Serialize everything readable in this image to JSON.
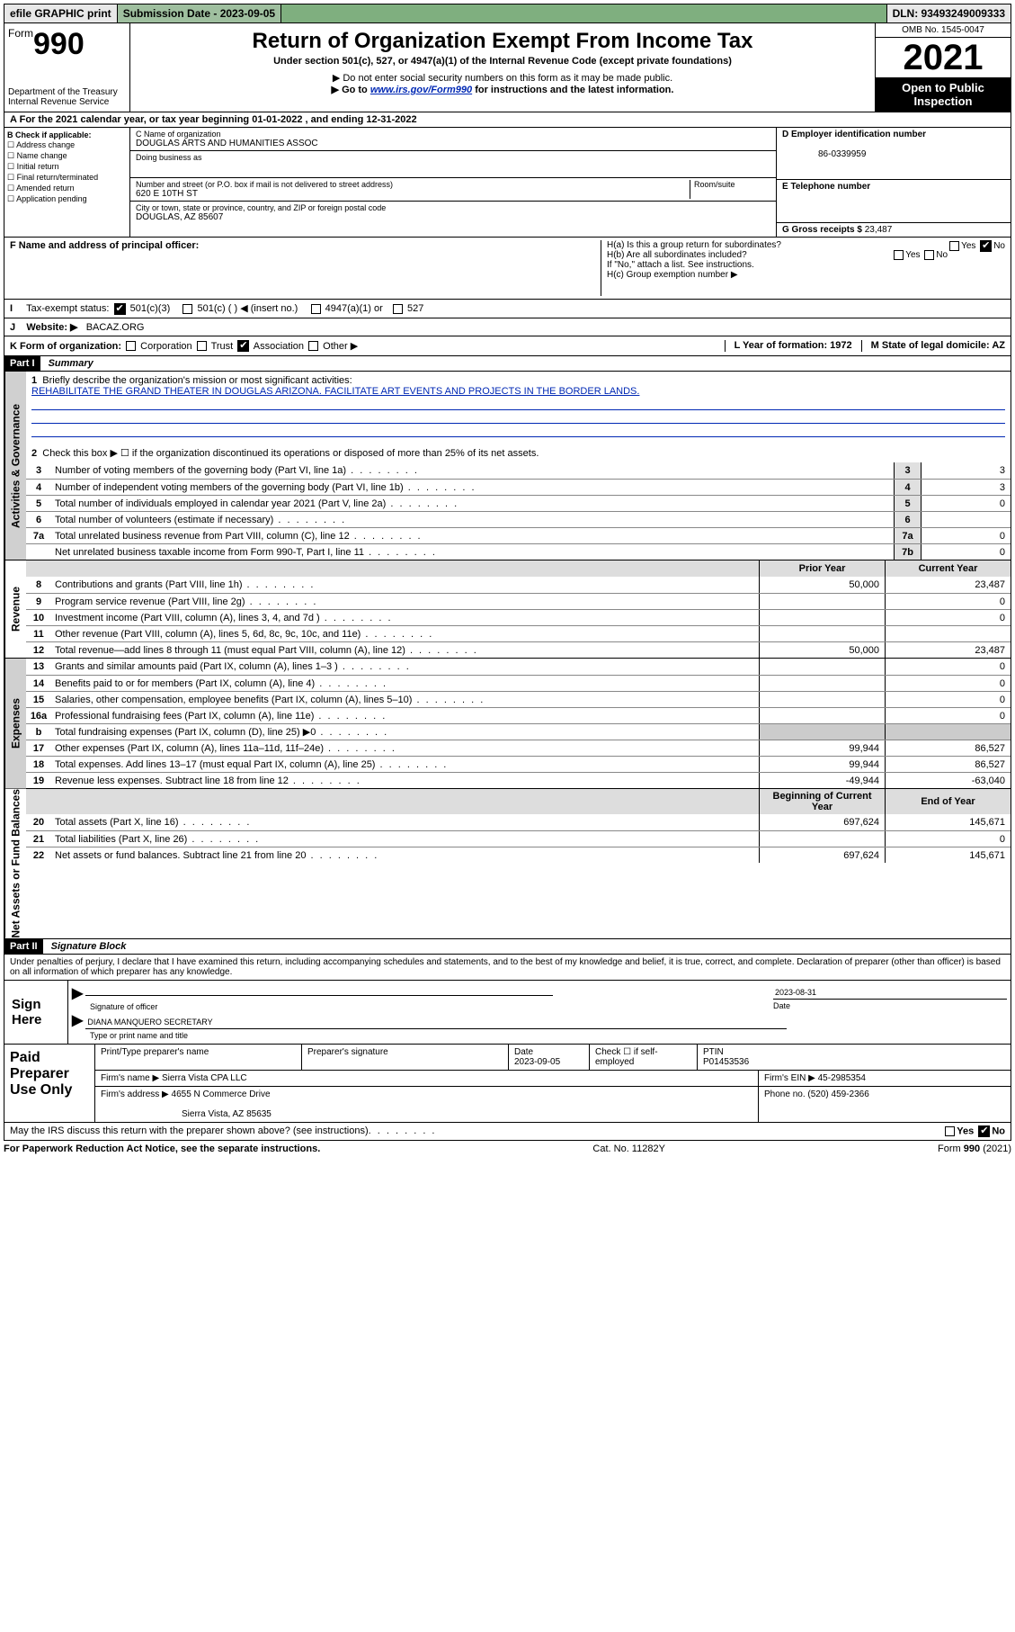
{
  "topbar": {
    "efile": "efile GRAPHIC print",
    "submission_label": "Submission Date - 2023-09-05",
    "dln": "DLN: 93493249009333"
  },
  "header": {
    "form_word": "Form",
    "form_number": "990",
    "dept": "Department of the Treasury",
    "irs": "Internal Revenue Service",
    "title": "Return of Organization Exempt From Income Tax",
    "subtitle": "Under section 501(c), 527, or 4947(a)(1) of the Internal Revenue Code (except private foundations)",
    "note1": "▶ Do not enter social security numbers on this form as it may be made public.",
    "note2_pre": "▶ Go to ",
    "note2_link": "www.irs.gov/Form990",
    "note2_post": " for instructions and the latest information.",
    "omb": "OMB No. 1545-0047",
    "year": "2021",
    "open": "Open to Public Inspection"
  },
  "A": {
    "text": "For the 2021 calendar year, or tax year beginning 01-01-2022   , and ending 12-31-2022"
  },
  "B": {
    "label": "B Check if applicable:",
    "opts": [
      "Address change",
      "Name change",
      "Initial return",
      "Final return/terminated",
      "Amended return",
      "Application pending"
    ]
  },
  "C": {
    "name_label": "C Name of organization",
    "name": "DOUGLAS ARTS AND HUMANITIES ASSOC",
    "dba_label": "Doing business as",
    "dba": "",
    "street_label": "Number and street (or P.O. box if mail is not delivered to street address)",
    "room_label": "Room/suite",
    "street": "620 E 10TH ST",
    "city_label": "City or town, state or province, country, and ZIP or foreign postal code",
    "city": "DOUGLAS, AZ  85607"
  },
  "D": {
    "label": "D Employer identification number",
    "val": "86-0339959"
  },
  "E": {
    "label": "E Telephone number",
    "val": ""
  },
  "G": {
    "label": "G Gross receipts $",
    "val": "23,487"
  },
  "F": {
    "label": "F  Name and address of principal officer:",
    "val": ""
  },
  "H": {
    "a": "H(a)  Is this a group return for subordinates?",
    "b": "H(b)  Are all subordinates included?",
    "bnote": "If \"No,\" attach a list. See instructions.",
    "c": "H(c)  Group exemption number ▶",
    "yes": "Yes",
    "no": "No"
  },
  "I": {
    "label": "Tax-exempt status:",
    "o1": "501(c)(3)",
    "o2": "501(c) (  ) ◀ (insert no.)",
    "o3": "4947(a)(1) or",
    "o4": "527"
  },
  "J": {
    "label": "Website: ▶",
    "val": "BACAZ.ORG"
  },
  "K": {
    "label": "K Form of organization:",
    "o1": "Corporation",
    "o2": "Trust",
    "o3": "Association",
    "o4": "Other ▶"
  },
  "L": {
    "label": "L Year of formation: 1972"
  },
  "M": {
    "label": "M State of legal domicile: AZ"
  },
  "partI": {
    "header": "Part I",
    "title": "Summary",
    "line1": "Briefly describe the organization's mission or most significant activities:",
    "mission": "REHABILITATE THE GRAND THEATER IN DOUGLAS ARIZONA. FACILITATE ART EVENTS AND PROJECTS IN THE BORDER LANDS.",
    "line2": "Check this box ▶ ☐  if the organization discontinued its operations or disposed of more than 25% of its net assets.",
    "gov_lines": [
      {
        "n": "3",
        "t": "Number of voting members of the governing body (Part VI, line 1a)",
        "box": "3",
        "v": "3"
      },
      {
        "n": "4",
        "t": "Number of independent voting members of the governing body (Part VI, line 1b)",
        "box": "4",
        "v": "3"
      },
      {
        "n": "5",
        "t": "Total number of individuals employed in calendar year 2021 (Part V, line 2a)",
        "box": "5",
        "v": "0"
      },
      {
        "n": "6",
        "t": "Total number of volunteers (estimate if necessary)",
        "box": "6",
        "v": ""
      },
      {
        "n": "7a",
        "t": "Total unrelated business revenue from Part VIII, column (C), line 12",
        "box": "7a",
        "v": "0"
      },
      {
        "n": "",
        "t": "Net unrelated business taxable income from Form 990-T, Part I, line 11",
        "box": "7b",
        "v": "0"
      }
    ],
    "col_prior": "Prior Year",
    "col_current": "Current Year",
    "revenue": [
      {
        "n": "8",
        "t": "Contributions and grants (Part VIII, line 1h)",
        "p": "50,000",
        "c": "23,487"
      },
      {
        "n": "9",
        "t": "Program service revenue (Part VIII, line 2g)",
        "p": "",
        "c": "0"
      },
      {
        "n": "10",
        "t": "Investment income (Part VIII, column (A), lines 3, 4, and 7d )",
        "p": "",
        "c": "0"
      },
      {
        "n": "11",
        "t": "Other revenue (Part VIII, column (A), lines 5, 6d, 8c, 9c, 10c, and 11e)",
        "p": "",
        "c": ""
      },
      {
        "n": "12",
        "t": "Total revenue—add lines 8 through 11 (must equal Part VIII, column (A), line 12)",
        "p": "50,000",
        "c": "23,487"
      }
    ],
    "expenses": [
      {
        "n": "13",
        "t": "Grants and similar amounts paid (Part IX, column (A), lines 1–3 )",
        "p": "",
        "c": "0"
      },
      {
        "n": "14",
        "t": "Benefits paid to or for members (Part IX, column (A), line 4)",
        "p": "",
        "c": "0"
      },
      {
        "n": "15",
        "t": "Salaries, other compensation, employee benefits (Part IX, column (A), lines 5–10)",
        "p": "",
        "c": "0"
      },
      {
        "n": "16a",
        "t": "Professional fundraising fees (Part IX, column (A), line 11e)",
        "p": "",
        "c": "0"
      },
      {
        "n": "b",
        "t": "Total fundraising expenses (Part IX, column (D), line 25) ▶0",
        "p": "SHADE",
        "c": "SHADE"
      },
      {
        "n": "17",
        "t": "Other expenses (Part IX, column (A), lines 11a–11d, 11f–24e)",
        "p": "99,944",
        "c": "86,527"
      },
      {
        "n": "18",
        "t": "Total expenses. Add lines 13–17 (must equal Part IX, column (A), line 25)",
        "p": "99,944",
        "c": "86,527"
      },
      {
        "n": "19",
        "t": "Revenue less expenses. Subtract line 18 from line 12",
        "p": "-49,944",
        "c": "-63,040"
      }
    ],
    "col_begin": "Beginning of Current Year",
    "col_end": "End of Year",
    "netassets": [
      {
        "n": "20",
        "t": "Total assets (Part X, line 16)",
        "p": "697,624",
        "c": "145,671"
      },
      {
        "n": "21",
        "t": "Total liabilities (Part X, line 26)",
        "p": "",
        "c": "0"
      },
      {
        "n": "22",
        "t": "Net assets or fund balances. Subtract line 21 from line 20",
        "p": "697,624",
        "c": "145,671"
      }
    ],
    "vtab_gov": "Activities & Governance",
    "vtab_rev": "Revenue",
    "vtab_exp": "Expenses",
    "vtab_net": "Net Assets or Fund Balances"
  },
  "partII": {
    "header": "Part II",
    "title": "Signature Block",
    "penalty": "Under penalties of perjury, I declare that I have examined this return, including accompanying schedules and statements, and to the best of my knowledge and belief, it is true, correct, and complete. Declaration of preparer (other than officer) is based on all information of which preparer has any knowledge.",
    "sign_here": "Sign Here",
    "sig_officer": "Signature of officer",
    "date": "Date",
    "date_val": "2023-08-31",
    "name_title": "DIANA MANQUERO SECRETARY",
    "name_label": "Type or print name and title",
    "paid": "Paid Preparer Use Only",
    "prep_name_h": "Print/Type preparer's name",
    "prep_sig_h": "Preparer's signature",
    "prep_date_h": "Date",
    "prep_date_v": "2023-09-05",
    "prep_check": "Check ☐ if self-employed",
    "ptin_h": "PTIN",
    "ptin_v": "P01453536",
    "firm_name_l": "Firm's name    ▶",
    "firm_name_v": "Sierra Vista CPA LLC",
    "firm_ein_l": "Firm's EIN ▶",
    "firm_ein_v": "45-2985354",
    "firm_addr_l": "Firm's address ▶",
    "firm_addr_v": "4655 N Commerce Drive",
    "firm_addr_v2": "Sierra Vista, AZ  85635",
    "phone_l": "Phone no.",
    "phone_v": "(520) 459-2366",
    "discuss": "May the IRS discuss this return with the preparer shown above? (see instructions)",
    "paperwork": "For Paperwork Reduction Act Notice, see the separate instructions.",
    "catno": "Cat. No. 11282Y",
    "formfoot": "Form 990 (2021)"
  }
}
